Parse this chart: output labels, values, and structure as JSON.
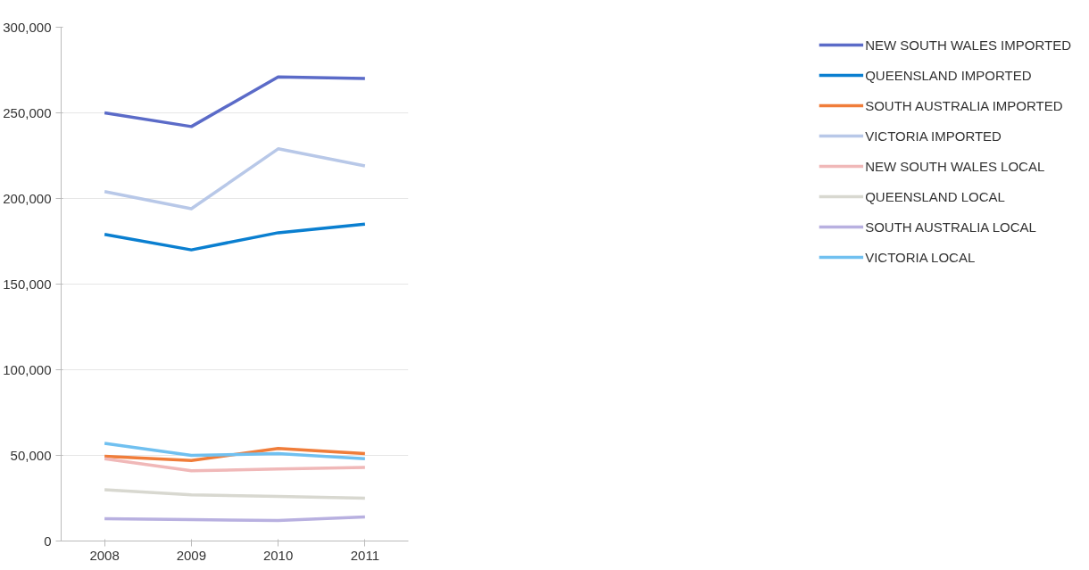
{
  "chart_data": {
    "type": "line",
    "categories": [
      "2008",
      "2009",
      "2010",
      "2011"
    ],
    "series": [
      {
        "name": "NEW SOUTH WALES IMPORTED",
        "color": "#5b6bc8",
        "values": [
          250000,
          242000,
          271000,
          270000
        ]
      },
      {
        "name": "QUEENSLAND IMPORTED",
        "color": "#0a7fd0",
        "values": [
          179000,
          170000,
          180000,
          185000
        ]
      },
      {
        "name": "SOUTH AUSTRALIA IMPORTED",
        "color": "#f07d3a",
        "values": [
          49500,
          47000,
          54000,
          51000
        ]
      },
      {
        "name": "VICTORIA IMPORTED",
        "color": "#b8c8e8",
        "values": [
          204000,
          194000,
          229000,
          219000
        ]
      },
      {
        "name": "NEW SOUTH WALES LOCAL",
        "color": "#f0b8b8",
        "values": [
          48000,
          41000,
          42000,
          43000
        ]
      },
      {
        "name": "QUEENSLAND LOCAL",
        "color": "#d8d8d0",
        "values": [
          30000,
          27000,
          26000,
          25000
        ]
      },
      {
        "name": "SOUTH AUSTRALIA LOCAL",
        "color": "#b8b0e0",
        "values": [
          13000,
          12500,
          12000,
          14000
        ]
      },
      {
        "name": "VICTORIA LOCAL",
        "color": "#70c0f0",
        "values": [
          57000,
          50000,
          51000,
          48000
        ]
      }
    ],
    "ylim": [
      0,
      300000
    ],
    "yticks": [
      {
        "value": 0,
        "label": "0"
      },
      {
        "value": 50000,
        "label": "50,000"
      },
      {
        "value": 100000,
        "label": "100,000"
      },
      {
        "value": 150000,
        "label": "150,000"
      },
      {
        "value": 200000,
        "label": "200,000"
      },
      {
        "value": 250000,
        "label": "250,000"
      },
      {
        "value": 300000,
        "label": "300,000"
      }
    ],
    "grid": "y",
    "legend": "right",
    "marker": "none",
    "line_style": "solid"
  }
}
